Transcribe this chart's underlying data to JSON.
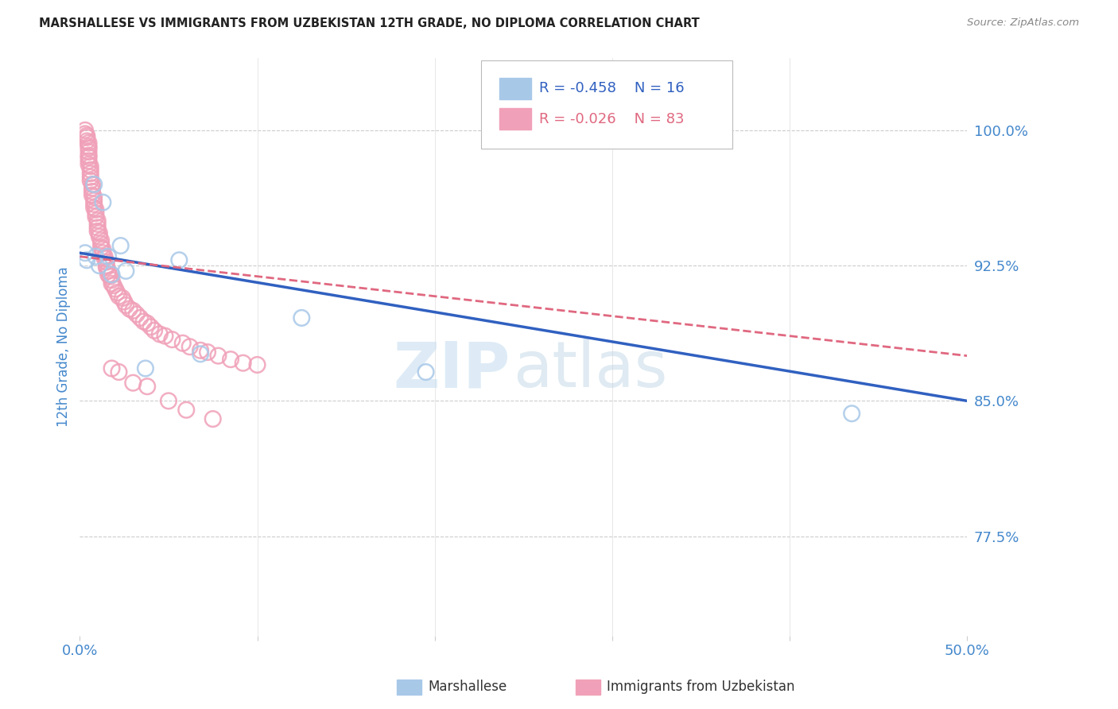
{
  "title": "MARSHALLESE VS IMMIGRANTS FROM UZBEKISTAN 12TH GRADE, NO DIPLOMA CORRELATION CHART",
  "source": "Source: ZipAtlas.com",
  "ylabel": "12th Grade, No Diploma",
  "ytick_labels": [
    "77.5%",
    "85.0%",
    "92.5%",
    "100.0%"
  ],
  "ytick_values": [
    0.775,
    0.85,
    0.925,
    1.0
  ],
  "xlim": [
    0.0,
    0.5
  ],
  "ylim": [
    0.72,
    1.04
  ],
  "legend_blue_R": "R = -0.458",
  "legend_blue_N": "N = 16",
  "legend_pink_R": "R = -0.026",
  "legend_pink_N": "N = 83",
  "blue_label": "Marshallese",
  "pink_label": "Immigrants from Uzbekistan",
  "blue_scatter_color": "#a8c8e8",
  "pink_scatter_color": "#f0a0b8",
  "blue_line_color": "#3060c0",
  "pink_line_color": "#e06880",
  "watermark_zip": "ZIP",
  "watermark_atlas": "atlas",
  "grid_color": "#cccccc",
  "tick_label_color": "#4488cc",
  "background_color": "#ffffff",
  "blue_scatter_x": [
    0.003,
    0.004,
    0.008,
    0.009,
    0.011,
    0.013,
    0.016,
    0.018,
    0.023,
    0.026,
    0.037,
    0.056,
    0.068,
    0.125,
    0.195,
    0.435
  ],
  "blue_scatter_y": [
    0.932,
    0.928,
    0.97,
    0.93,
    0.925,
    0.96,
    0.93,
    0.92,
    0.936,
    0.922,
    0.868,
    0.928,
    0.876,
    0.896,
    0.866,
    0.843
  ],
  "pink_scatter_x": [
    0.003,
    0.003,
    0.004,
    0.004,
    0.004,
    0.005,
    0.005,
    0.005,
    0.005,
    0.005,
    0.005,
    0.005,
    0.005,
    0.006,
    0.006,
    0.006,
    0.006,
    0.006,
    0.007,
    0.007,
    0.007,
    0.007,
    0.008,
    0.008,
    0.008,
    0.008,
    0.009,
    0.009,
    0.009,
    0.01,
    0.01,
    0.01,
    0.01,
    0.011,
    0.011,
    0.012,
    0.012,
    0.012,
    0.013,
    0.013,
    0.014,
    0.014,
    0.015,
    0.015,
    0.015,
    0.016,
    0.016,
    0.017,
    0.018,
    0.018,
    0.019,
    0.02,
    0.021,
    0.022,
    0.024,
    0.025,
    0.026,
    0.028,
    0.03,
    0.032,
    0.034,
    0.036,
    0.038,
    0.04,
    0.042,
    0.045,
    0.048,
    0.052,
    0.058,
    0.062,
    0.068,
    0.072,
    0.078,
    0.085,
    0.092,
    0.1,
    0.018,
    0.022,
    0.03,
    0.038,
    0.05,
    0.06,
    0.075
  ],
  "pink_scatter_y": [
    1.0,
    0.998,
    0.997,
    0.996,
    0.994,
    0.993,
    0.991,
    0.99,
    0.988,
    0.986,
    0.985,
    0.983,
    0.981,
    0.98,
    0.978,
    0.976,
    0.974,
    0.972,
    0.97,
    0.968,
    0.966,
    0.964,
    0.963,
    0.961,
    0.959,
    0.957,
    0.956,
    0.954,
    0.952,
    0.95,
    0.948,
    0.946,
    0.944,
    0.943,
    0.941,
    0.939,
    0.937,
    0.935,
    0.934,
    0.932,
    0.93,
    0.929,
    0.927,
    0.925,
    0.924,
    0.922,
    0.92,
    0.919,
    0.917,
    0.915,
    0.914,
    0.912,
    0.91,
    0.908,
    0.907,
    0.905,
    0.903,
    0.901,
    0.9,
    0.898,
    0.896,
    0.894,
    0.893,
    0.891,
    0.889,
    0.887,
    0.886,
    0.884,
    0.882,
    0.88,
    0.878,
    0.877,
    0.875,
    0.873,
    0.871,
    0.87,
    0.868,
    0.866,
    0.86,
    0.858,
    0.85,
    0.845,
    0.84
  ],
  "blue_trend_x0": 0.0,
  "blue_trend_y0": 0.932,
  "blue_trend_x1": 0.5,
  "blue_trend_y1": 0.85,
  "pink_trend_x0": 0.0,
  "pink_trend_y0": 0.93,
  "pink_trend_x1": 0.5,
  "pink_trend_y1": 0.875
}
